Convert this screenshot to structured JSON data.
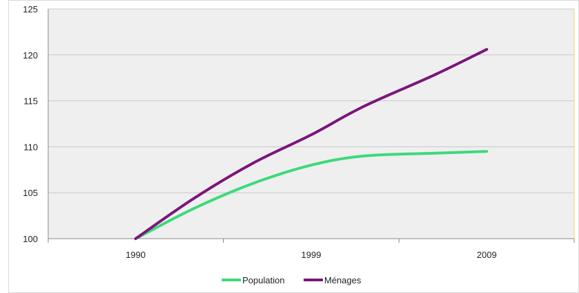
{
  "chart_data": {
    "type": "line",
    "categories": [
      "1990",
      "1999",
      "2009"
    ],
    "x": [
      1990,
      1993,
      1996,
      1999,
      2002,
      2006,
      2009
    ],
    "series": [
      {
        "name": "Population",
        "color": "#3dd97a",
        "values": [
          100.0,
          103.3,
          106.0,
          108.0,
          109.0,
          109.3,
          109.5
        ]
      },
      {
        "name": "Ménages",
        "color": "#7b157a",
        "values": [
          100.0,
          104.4,
          108.2,
          111.3,
          114.4,
          117.8,
          120.6
        ]
      }
    ],
    "ylim": [
      100,
      125
    ],
    "yticks": [
      "100",
      "105",
      "110",
      "115",
      "120",
      "125"
    ],
    "xlabel": "",
    "ylabel": "",
    "grid": true,
    "legend": "bottom",
    "plot_background": "#efefef",
    "title": ""
  }
}
